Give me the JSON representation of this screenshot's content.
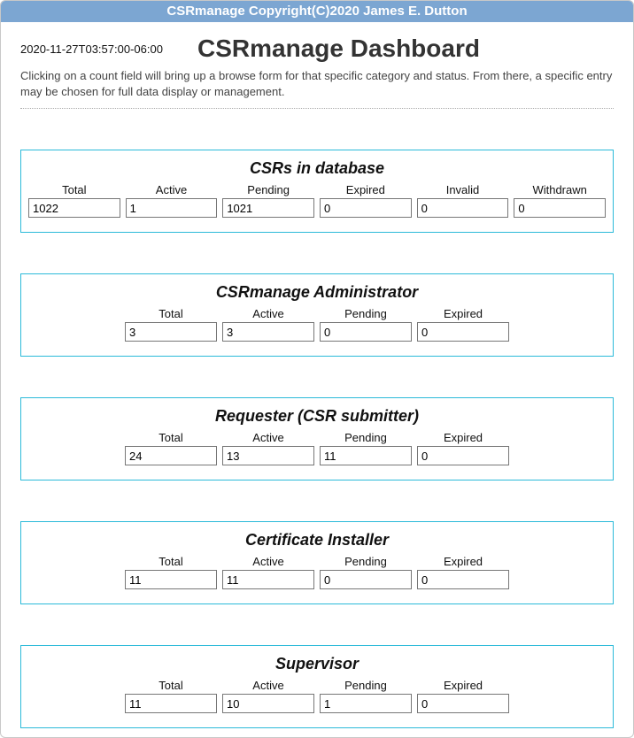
{
  "banner": "CSRmanage Copyright(C)2020 James E. Dutton",
  "timestamp": "2020-11-27T03:57:00-06:00",
  "page_title": "CSRmanage Dashboard",
  "subtitle": "Clicking on a count field will bring up a browse form for that specific category and status. From there, a specific entry may be chosen for full data display or management.",
  "labels6": {
    "total": "Total",
    "active": "Active",
    "pending": "Pending",
    "expired": "Expired",
    "invalid": "Invalid",
    "withdrawn": "Withdrawn"
  },
  "labels4": {
    "total": "Total",
    "active": "Active",
    "pending": "Pending",
    "expired": "Expired"
  },
  "panels": {
    "csrs": {
      "title": "CSRs in database",
      "total": "1022",
      "active": "1",
      "pending": "1021",
      "expired": "0",
      "invalid": "0",
      "withdrawn": "0"
    },
    "admin": {
      "title": "CSRmanage Administrator",
      "total": "3",
      "active": "3",
      "pending": "0",
      "expired": "0"
    },
    "requester": {
      "title": "Requester (CSR submitter)",
      "total": "24",
      "active": "13",
      "pending": "11",
      "expired": "0"
    },
    "installer": {
      "title": "Certificate Installer",
      "total": "11",
      "active": "11",
      "pending": "0",
      "expired": "0"
    },
    "supervisor": {
      "title": "Supervisor",
      "total": "11",
      "active": "10",
      "pending": "1",
      "expired": "0"
    }
  }
}
